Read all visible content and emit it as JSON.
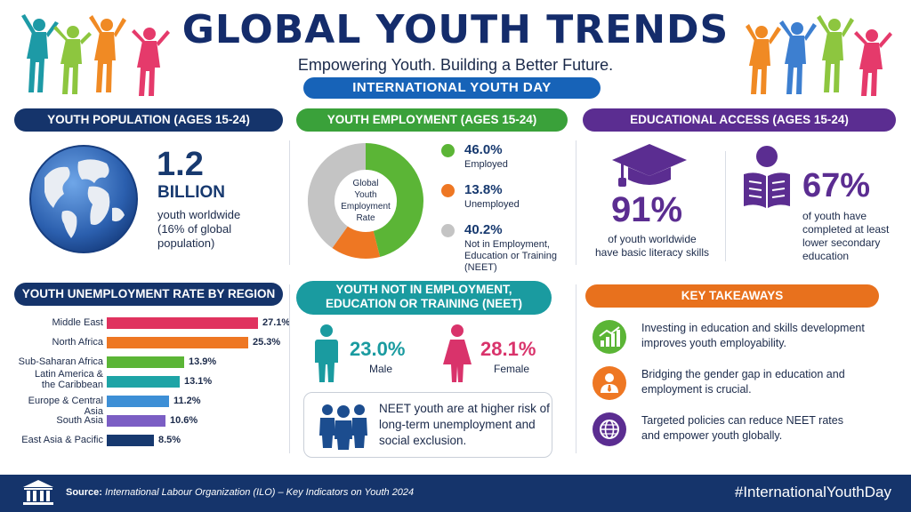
{
  "header": {
    "title": "GLOBAL YOUTH TRENDS",
    "subtitle": "Empowering Youth. Building a Better Future.",
    "day_band": "INTERNATIONAL YOUTH DAY"
  },
  "population": {
    "heading": "YOUTH POPULATION (AGES 15-24)",
    "number": "1.2",
    "unit": "BILLION",
    "desc1": "youth worldwide",
    "desc2": "(16% of global",
    "desc3": "population)"
  },
  "employment": {
    "heading": "YOUTH EMPLOYMENT (AGES 15-24)",
    "center1": "Global",
    "center2": "Youth",
    "center3": "Employment",
    "center4": "Rate",
    "items": [
      {
        "value": "46.0%",
        "label1": "Employed",
        "label2": "",
        "label3": "",
        "color": "#5bb536",
        "share": 46.0
      },
      {
        "value": "13.8%",
        "label1": "Unemployed",
        "label2": "",
        "label3": "",
        "color": "#ee7723",
        "share": 13.8
      },
      {
        "value": "40.2%",
        "label1": "Not in Employment,",
        "label2": "Education or Training",
        "label3": "(NEET)",
        "color": "#c4c4c4",
        "share": 40.2
      }
    ]
  },
  "education": {
    "heading": "EDUCATIONAL ACCESS (AGES 15-24)",
    "literacy_value": "91%",
    "literacy_desc1": "of youth worldwide",
    "literacy_desc2": "have basic literacy skills",
    "secondary_value": "67%",
    "secondary_desc1": "of youth have",
    "secondary_desc2": "completed at least",
    "secondary_desc3": "lower secondary",
    "secondary_desc4": "education",
    "accent": "#5b2d91"
  },
  "unemployment": {
    "heading": "YOUTH UNEMPLOYMENT RATE BY REGION",
    "rows": [
      {
        "label1": "Middle East",
        "label2": "",
        "value": 27.1,
        "text": "27.1%",
        "color": "#e0325f"
      },
      {
        "label1": "North Africa",
        "label2": "",
        "value": 25.3,
        "text": "25.3%",
        "color": "#ee7723"
      },
      {
        "label1": "Sub-Saharan Africa",
        "label2": "",
        "value": 13.9,
        "text": "13.9%",
        "color": "#5bb536"
      },
      {
        "label1": "Latin America &",
        "label2": "the Caribbean",
        "value": 13.1,
        "text": "13.1%",
        "color": "#1ea4a6"
      },
      {
        "label1": "Europe & Central Asia",
        "label2": "",
        "value": 11.2,
        "text": "11.2%",
        "color": "#3d8fd6"
      },
      {
        "label1": "South Asia",
        "label2": "",
        "value": 10.6,
        "text": "10.6%",
        "color": "#7b5ec4"
      },
      {
        "label1": "East Asia & Pacific",
        "label2": "",
        "value": 8.5,
        "text": "8.5%",
        "color": "#17396f"
      }
    ]
  },
  "neet": {
    "heading1": "YOUTH NOT IN EMPLOYMENT,",
    "heading2": "EDUCATION OR TRAINING (NEET)",
    "male_value": "23.0%",
    "male_label": "Male",
    "female_value": "28.1%",
    "female_label": "Female",
    "risk1": "NEET youth are at higher risk of",
    "risk2": "long-term unemployment and",
    "risk3": "social exclusion."
  },
  "takeaways": {
    "heading": "KEY TAKEAWAYS",
    "items": [
      {
        "line1": "Investing in education and skills development",
        "line2": "improves youth employability.",
        "icon": "growth-chart-icon",
        "color": "#5bb536"
      },
      {
        "line1": "Bridging the gender gap in education and",
        "line2": "employment is crucial.",
        "icon": "professional-person-icon",
        "color": "#ee7723"
      },
      {
        "line1": "Targeted policies can reduce NEET rates",
        "line2": "and empower youth globally.",
        "icon": "globe-icon",
        "color": "#5b2d91"
      }
    ]
  },
  "footer": {
    "source_label": "Source:",
    "source_text": "International Labour Organization (ILO) – Key Indicators on Youth 2024",
    "hashtag": "#InternationalYouthDay"
  },
  "colors": {
    "navy": "#15346b",
    "blue": "#1763b8",
    "green": "#3aa13a",
    "purple": "#5b2d91",
    "teal": "#1a9ba0",
    "orange": "#e8711d"
  }
}
